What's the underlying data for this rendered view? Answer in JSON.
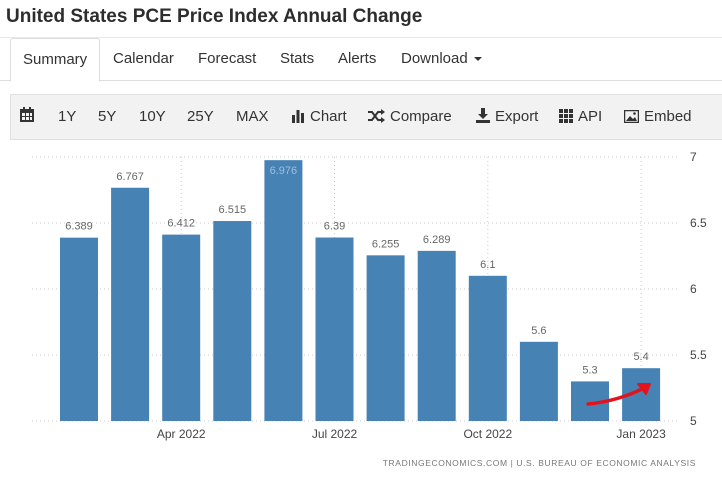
{
  "page": {
    "title": "United States PCE Price Index Annual Change"
  },
  "tabs": [
    {
      "label": "Summary"
    },
    {
      "label": "Calendar"
    },
    {
      "label": "Forecast"
    },
    {
      "label": "Stats"
    },
    {
      "label": "Alerts"
    },
    {
      "label": "Download"
    }
  ],
  "toolbar": {
    "range_1y": "1Y",
    "range_5y": "5Y",
    "range_10y": "10Y",
    "range_25y": "25Y",
    "range_max": "MAX",
    "chart": "Chart",
    "compare": "Compare",
    "export": "Export",
    "api": "API",
    "embed": "Embed"
  },
  "source": "TRADINGECONOMICS.COM | U.S. BUREAU OF ECONOMIC ANALYSIS",
  "colors": {
    "bar": "#4682b4",
    "arrow": "#e3131d",
    "grid": "#cccccc"
  },
  "chart_data": {
    "type": "bar",
    "categories": [
      "Feb 2022",
      "Mar 2022",
      "Apr 2022",
      "May 2022",
      "Jun 2022",
      "Jul 2022",
      "Aug 2022",
      "Sep 2022",
      "Oct 2022",
      "Nov 2022",
      "Dec 2022",
      "Jan 2023"
    ],
    "values": [
      6.389,
      6.767,
      6.412,
      6.515,
      6.976,
      6.39,
      6.255,
      6.289,
      6.1,
      5.6,
      5.3,
      5.4
    ],
    "value_labels": [
      "6.389",
      "6.767",
      "6.412",
      "6.515",
      "6.976",
      "6.39",
      "6.255",
      "6.289",
      "6.1",
      "5.6",
      "5.3",
      "5.4"
    ],
    "x_tick_labels": [
      "Apr 2022",
      "Jul 2022",
      "Oct 2022",
      "Jan 2023"
    ],
    "x_tick_categories": [
      "Apr 2022",
      "Jul 2022",
      "Oct 2022",
      "Jan 2023"
    ],
    "y_ticks": [
      "7",
      "6.5",
      "6",
      "5.5",
      "5"
    ],
    "ylim": [
      5,
      7
    ],
    "y_axis_position": "right",
    "grid": true,
    "annotation": "red-upward-arrow"
  }
}
